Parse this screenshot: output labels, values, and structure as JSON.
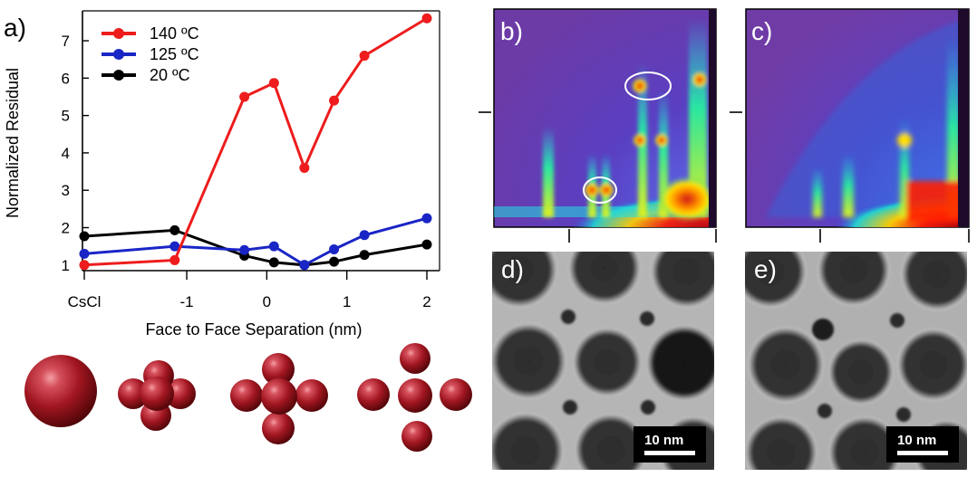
{
  "panels": {
    "a": "a)",
    "b": "b)",
    "c": "c)",
    "d": "d)",
    "e": "e)"
  },
  "scale_bar": "10 nm",
  "chart_data": {
    "type": "line",
    "ylabel": "Normalized Residual",
    "xlabel": "Face to Face Separation (nm)",
    "x_tick_labels": [
      "CsCl",
      "-1",
      "0",
      "1",
      "2"
    ],
    "y_ticks": [
      1,
      2,
      3,
      4,
      5,
      6,
      7
    ],
    "ylim": [
      0.85,
      7.8
    ],
    "x_positions": [
      "CsCl",
      -1.15,
      -0.28,
      0.09,
      0.47,
      0.84,
      1.22,
      2.0
    ],
    "series": [
      {
        "name": "140 ºC",
        "color": "#ee1c1c",
        "values": [
          1.0,
          1.13,
          5.5,
          5.87,
          3.6,
          5.4,
          6.6,
          7.6
        ]
      },
      {
        "name": "125 ºC",
        "color": "#1a25c6",
        "values": [
          1.3,
          1.5,
          1.4,
          1.5,
          1.0,
          1.42,
          1.8,
          2.25
        ]
      },
      {
        "name": "20 ºC",
        "color": "#000000",
        "values": [
          1.77,
          1.93,
          1.25,
          1.07,
          1.0,
          1.09,
          1.27,
          1.55
        ]
      }
    ],
    "legend_position": "top-left"
  }
}
